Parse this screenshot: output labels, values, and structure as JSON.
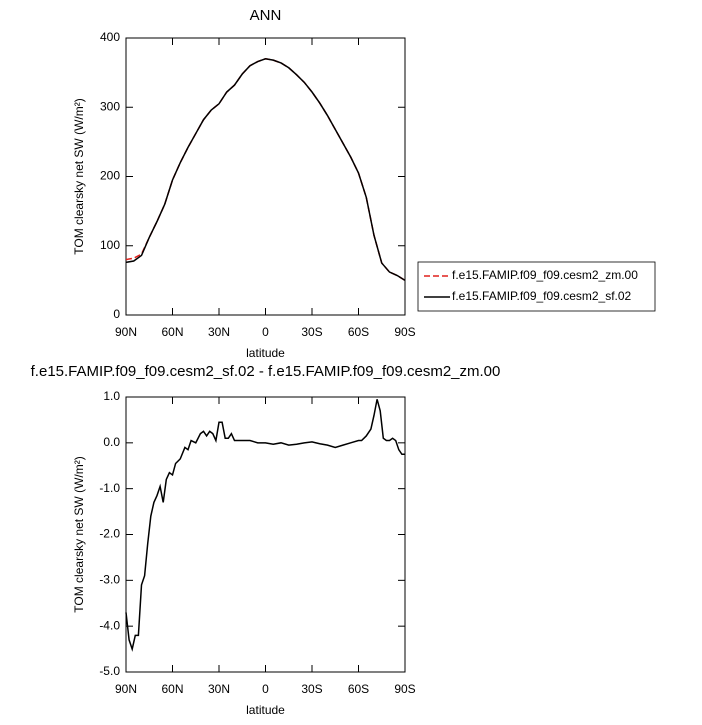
{
  "chart_data": [
    {
      "type": "line",
      "title": "ANN",
      "x": [
        90,
        85,
        80,
        75,
        70,
        65,
        60,
        55,
        50,
        45,
        40,
        35,
        30,
        25,
        20,
        15,
        10,
        5,
        0,
        -5,
        -10,
        -15,
        -20,
        -25,
        -30,
        -35,
        -40,
        -45,
        -50,
        -55,
        -60,
        -65,
        -70,
        -75,
        -80,
        -85,
        -90
      ],
      "series": [
        {
          "name": "f.e15.FAMIP.f09_f09.cesm2_zm.00",
          "color": "#e0201b",
          "line_style": "dashed",
          "values": [
            80,
            82,
            88,
            112,
            135,
            160,
            195,
            220,
            242,
            262,
            282,
            296,
            305,
            322,
            332,
            348,
            360,
            366,
            370,
            368,
            364,
            357,
            347,
            336,
            322,
            306,
            288,
            268,
            248,
            228,
            205,
            170,
            115,
            75,
            62,
            57,
            50
          ]
        },
        {
          "name": "f.e15.FAMIP.f09_f09.cesm2_sf.02",
          "color": "#000000",
          "line_style": "solid",
          "values": [
            76,
            78,
            86,
            112,
            135,
            160,
            195,
            220,
            242,
            262,
            282,
            296,
            305,
            322,
            332,
            348,
            360,
            366,
            370,
            368,
            364,
            357,
            347,
            336,
            322,
            306,
            288,
            268,
            248,
            228,
            205,
            170,
            115,
            75,
            62,
            57,
            50
          ]
        }
      ],
      "x_label": "latitude",
      "y_label": "TOM clearsky net SW (W/m²)",
      "xlim": [
        90,
        -90
      ],
      "xticks": [
        {
          "value": 90,
          "label": "90N"
        },
        {
          "value": 60,
          "label": "60N"
        },
        {
          "value": 30,
          "label": "30N"
        },
        0,
        {
          "value": -30,
          "label": "30S"
        },
        {
          "value": -60,
          "label": "60S"
        },
        {
          "value": -90,
          "label": "90S"
        }
      ],
      "ylim": [
        0,
        400
      ],
      "yticks": [
        0,
        100,
        200,
        300,
        400
      ],
      "legend": "right"
    },
    {
      "type": "line",
      "title": "f.e15.FAMIP.f09_f09.cesm2_sf.02 - f.e15.FAMIP.f09_f09.cesm2_zm.00",
      "x": [
        90,
        88,
        86,
        84,
        82,
        80,
        78,
        76,
        74,
        72,
        70,
        68,
        66,
        64,
        62,
        60,
        58,
        55,
        52,
        50,
        48,
        45,
        42,
        40,
        38,
        36,
        34,
        32,
        30,
        28,
        26,
        24,
        22,
        20,
        15,
        10,
        5,
        0,
        -5,
        -10,
        -15,
        -20,
        -25,
        -30,
        -35,
        -40,
        -45,
        -50,
        -55,
        -60,
        -62,
        -65,
        -68,
        -70,
        -72,
        -74,
        -76,
        -78,
        -80,
        -82,
        -84,
        -86,
        -88,
        -90
      ],
      "values": [
        -3.7,
        -4.3,
        -4.5,
        -4.2,
        -4.2,
        -3.1,
        -2.9,
        -2.2,
        -1.6,
        -1.3,
        -1.15,
        -0.95,
        -1.3,
        -0.8,
        -0.65,
        -0.7,
        -0.45,
        -0.35,
        -0.1,
        -0.15,
        0.05,
        0.0,
        0.2,
        0.25,
        0.15,
        0.25,
        0.2,
        0.05,
        0.45,
        0.45,
        0.1,
        0.1,
        0.2,
        0.05,
        0.05,
        0.05,
        0.0,
        0.0,
        -0.03,
        0.0,
        -0.05,
        -0.03,
        0.0,
        0.02,
        -0.02,
        -0.05,
        -0.1,
        -0.05,
        0.0,
        0.05,
        0.05,
        0.15,
        0.3,
        0.6,
        0.95,
        0.7,
        0.1,
        0.05,
        0.05,
        0.1,
        0.05,
        -0.15,
        -0.25,
        -0.25
      ],
      "color": "#000000",
      "x_label": "latitude",
      "y_label": "TOM clearsky net SW (W/m²)",
      "xlim": [
        90,
        -90
      ],
      "xticks": [
        {
          "value": 90,
          "label": "90N"
        },
        {
          "value": 60,
          "label": "60N"
        },
        {
          "value": 30,
          "label": "30N"
        },
        0,
        {
          "value": -30,
          "label": "30S"
        },
        {
          "value": -60,
          "label": "60S"
        },
        {
          "value": -90,
          "label": "90S"
        }
      ],
      "ylim": [
        -5,
        1
      ],
      "yticks": [
        {
          "value": 1,
          "label": "1.0"
        },
        {
          "value": 0,
          "label": "0.0"
        },
        {
          "value": -1,
          "label": "-1.0"
        },
        {
          "value": -2,
          "label": "-2.0"
        },
        {
          "value": -3,
          "label": "-3.0"
        },
        {
          "value": -4,
          "label": "-4.0"
        },
        {
          "value": -5,
          "label": "-5.0"
        }
      ]
    }
  ]
}
